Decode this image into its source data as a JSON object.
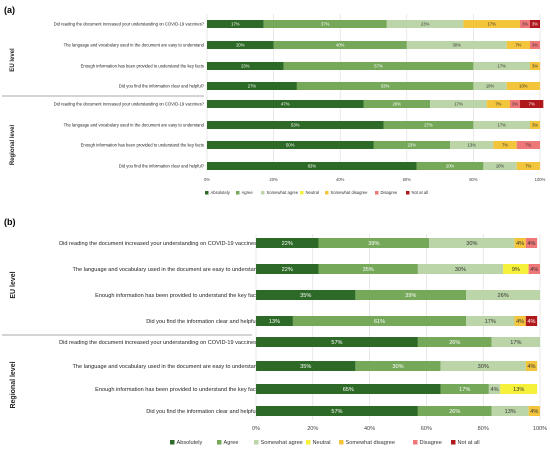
{
  "legend_labels": [
    "Absolutely",
    "Agree",
    "Somewhat agree",
    "Neutral",
    "Somewhat disagree",
    "Disagree",
    "Not at all"
  ],
  "colors": [
    "#2e6a27",
    "#76a85a",
    "#bcd5a8",
    "#f5f03a",
    "#f3c53c",
    "#ee7777",
    "#b0191c"
  ],
  "chart_data": [
    {
      "type": "bar",
      "panel": "(a)",
      "orientation": "horizontal",
      "stacked": true,
      "xlim": [
        0,
        100
      ],
      "x_tick_labels": [
        "0%",
        "20%",
        "40%",
        "60%",
        "80%",
        "100%"
      ],
      "legend": [
        "Absolutely",
        "Agree",
        "Somewhat agree",
        "Neutral",
        "Somewhat disagree",
        "Disagree",
        "Not at all"
      ],
      "legend_position": "bottom",
      "groups": [
        {
          "label": "EU level",
          "rows": [
            {
              "label": "Did reading the document increased your understanding on COVID-19 vaccines?",
              "values": [
                17,
                37,
                23,
                0,
                17,
                3,
                3
              ]
            },
            {
              "label": "The language and vocabulary used in the document are easy to understand",
              "values": [
                20,
                40,
                30,
                0,
                7,
                3,
                0
              ]
            },
            {
              "label": "Enough information has been provided to understand the key facts",
              "values": [
                23,
                57,
                17,
                0,
                3,
                0,
                0
              ]
            },
            {
              "label": "Did you find the information clear and helpful?",
              "values": [
                27,
                53,
                10,
                0,
                10,
                0,
                0
              ]
            }
          ]
        },
        {
          "label": "Regional level",
          "rows": [
            {
              "label": "Did reading the document increased your understanding on COVID-19 vaccines?",
              "values": [
                47,
                20,
                17,
                0,
                7,
                3,
                7
              ]
            },
            {
              "label": "The language and vocabulary used in the document are easy to understand",
              "values": [
                53,
                27,
                17,
                0,
                3,
                0,
                0
              ]
            },
            {
              "label": "Enough information has been provided to understand the key facts",
              "values": [
                50,
                23,
                13,
                0,
                7,
                7,
                0
              ]
            },
            {
              "label": "Did you find the information clear and helpful?",
              "values": [
                63,
                20,
                10,
                0,
                7,
                0,
                0
              ]
            }
          ]
        }
      ]
    },
    {
      "type": "bar",
      "panel": "(b)",
      "orientation": "horizontal",
      "stacked": true,
      "xlim": [
        0,
        100
      ],
      "x_tick_labels": [
        "0%",
        "20%",
        "40%",
        "60%",
        "80%",
        "100%"
      ],
      "legend": [
        "Absolutely",
        "Agree",
        "Somewhat agree",
        "Neutral",
        "Somewhat disagree",
        "Disagree",
        "Not at all"
      ],
      "legend_position": "bottom",
      "groups": [
        {
          "label": "EU level",
          "rows": [
            {
              "label": "Did reading the document increased your understanding on COVID-19 vaccines?",
              "values": [
                22,
                39,
                30,
                0,
                4,
                4,
                0
              ]
            },
            {
              "label": "The language and vocabulary used in the document are easy to understand",
              "values": [
                22,
                35,
                30,
                9,
                0,
                4,
                0
              ]
            },
            {
              "label": "Enough information has been provided to understand the key facts",
              "values": [
                35,
                39,
                26,
                0,
                0,
                0,
                0
              ]
            },
            {
              "label": "Did you find the information clear and helpful?",
              "values": [
                13,
                61,
                17,
                0,
                4,
                0,
                4
              ]
            }
          ]
        },
        {
          "label": "Regional level",
          "rows": [
            {
              "label": "Did reading the document increased your understanding on COVID-19 vaccines?",
              "values": [
                57,
                26,
                17,
                0,
                0,
                0,
                0
              ]
            },
            {
              "label": "The language and vocabulary used in the document are easy to understand",
              "values": [
                35,
                30,
                30,
                0,
                4,
                0,
                0
              ]
            },
            {
              "label": "Enough information has been provided to understand the key facts",
              "values": [
                65,
                17,
                4,
                13,
                0,
                0,
                0
              ]
            },
            {
              "label": "Did you find the information clear and helpful?",
              "values": [
                57,
                26,
                13,
                0,
                4,
                0,
                0
              ]
            }
          ]
        }
      ]
    }
  ]
}
